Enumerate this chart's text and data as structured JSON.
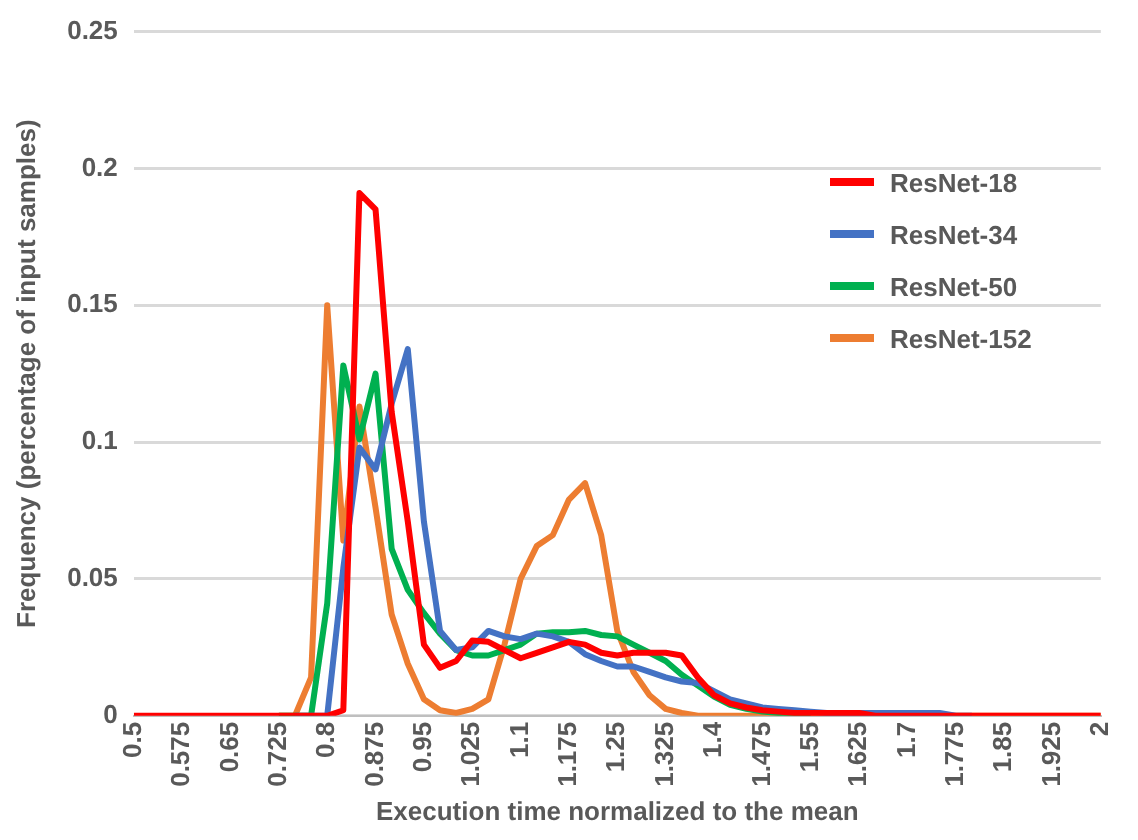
{
  "chart_data": {
    "type": "line",
    "xlabel": "Execution time normalized to the mean",
    "ylabel": "Frequency (percentage of input samples)",
    "x": [
      0.5,
      0.525,
      0.55,
      0.575,
      0.6,
      0.625,
      0.65,
      0.675,
      0.7,
      0.725,
      0.75,
      0.775,
      0.8,
      0.825,
      0.85,
      0.875,
      0.9,
      0.925,
      0.95,
      0.975,
      1,
      1.025,
      1.05,
      1.075,
      1.1,
      1.125,
      1.15,
      1.175,
      1.2,
      1.225,
      1.25,
      1.275,
      1.3,
      1.325,
      1.35,
      1.375,
      1.4,
      1.425,
      1.45,
      1.475,
      1.5,
      1.525,
      1.55,
      1.575,
      1.6,
      1.625,
      1.65,
      1.675,
      1.7,
      1.725,
      1.75,
      1.775,
      1.8,
      1.825,
      1.85,
      1.875,
      1.9,
      1.925,
      1.95,
      1.975,
      2
    ],
    "series": [
      {
        "name": "ResNet-18",
        "color": "#ff0000",
        "values": [
          0,
          0,
          0,
          0,
          0,
          0,
          0,
          0,
          0,
          0,
          0,
          0,
          0,
          0.002,
          0.191,
          0.185,
          0.111,
          0.071,
          0.026,
          0.0175,
          0.02,
          0.0275,
          0.027,
          0.024,
          0.021,
          0.023,
          0.025,
          0.027,
          0.026,
          0.023,
          0.022,
          0.023,
          0.023,
          0.023,
          0.022,
          0.014,
          0.0075,
          0.0045,
          0.003,
          0.002,
          0.0015,
          0.001,
          0.001,
          0.001,
          0.001,
          0.001,
          0,
          0,
          0,
          0,
          0,
          0,
          0,
          0,
          0,
          0,
          0,
          0,
          0,
          0,
          0
        ]
      },
      {
        "name": "ResNet-34",
        "color": "#4472c4",
        "values": [
          null,
          null,
          null,
          null,
          null,
          null,
          null,
          null,
          null,
          null,
          0,
          0,
          0,
          0.054,
          0.098,
          0.09,
          0.114,
          0.134,
          0.071,
          0.031,
          0.024,
          0.025,
          0.031,
          0.029,
          0.028,
          0.03,
          0.029,
          0.027,
          0.0225,
          0.02,
          0.018,
          0.018,
          0.016,
          0.014,
          0.0125,
          0.012,
          0.009,
          0.006,
          0.0045,
          0.003,
          0.0025,
          0.002,
          0.0015,
          0.001,
          0.001,
          0.001,
          0.001,
          0.001,
          0.001,
          0.001,
          0.001,
          0,
          0,
          null,
          null,
          null,
          null,
          null,
          null,
          null,
          null
        ]
      },
      {
        "name": "ResNet-50",
        "color": "#00b050",
        "values": [
          null,
          null,
          null,
          null,
          null,
          null,
          null,
          null,
          null,
          0,
          0,
          0,
          0.041,
          0.128,
          0.101,
          0.125,
          0.061,
          0.046,
          0.0375,
          0.03,
          0.024,
          0.022,
          0.022,
          0.024,
          0.026,
          0.03,
          0.0305,
          0.0305,
          0.031,
          0.0295,
          0.029,
          0.026,
          0.023,
          0.02,
          0.015,
          0.011,
          0.007,
          0.004,
          0.0025,
          0.0015,
          0.001,
          0.0005,
          0.0005,
          null,
          null,
          null,
          null,
          null,
          null,
          null,
          null,
          null,
          null,
          null,
          null,
          null,
          null,
          null,
          null,
          null,
          null
        ]
      },
      {
        "name": "ResNet-152",
        "color": "#ed7d31",
        "values": [
          null,
          null,
          null,
          null,
          null,
          null,
          null,
          null,
          null,
          0,
          0,
          0.014,
          0.15,
          0.064,
          0.113,
          0.076,
          0.037,
          0.019,
          0.006,
          0.002,
          0.001,
          0.0025,
          0.006,
          0.026,
          0.05,
          0.062,
          0.066,
          0.079,
          0.085,
          0.066,
          0.031,
          0.016,
          0.0075,
          0.0025,
          0.001,
          0,
          0,
          0,
          0,
          0,
          0,
          0,
          0,
          0,
          0,
          0,
          0,
          0,
          0,
          0,
          0,
          0,
          0,
          0,
          0,
          0,
          0,
          0,
          0,
          0,
          0
        ]
      }
    ],
    "xlim": [
      0.5,
      2
    ],
    "xticks": [
      0.5,
      0.575,
      0.65,
      0.725,
      0.8,
      0.875,
      0.95,
      1.025,
      1.1,
      1.175,
      1.25,
      1.325,
      1.4,
      1.475,
      1.55,
      1.625,
      1.7,
      1.775,
      1.85,
      1.925,
      2
    ],
    "ylim": [
      0,
      0.25
    ],
    "yticks": [
      0,
      0.05,
      0.1,
      0.15,
      0.2,
      0.25
    ],
    "grid": "y",
    "legend": "top right",
    "marker": "none",
    "line_style": "solid"
  }
}
